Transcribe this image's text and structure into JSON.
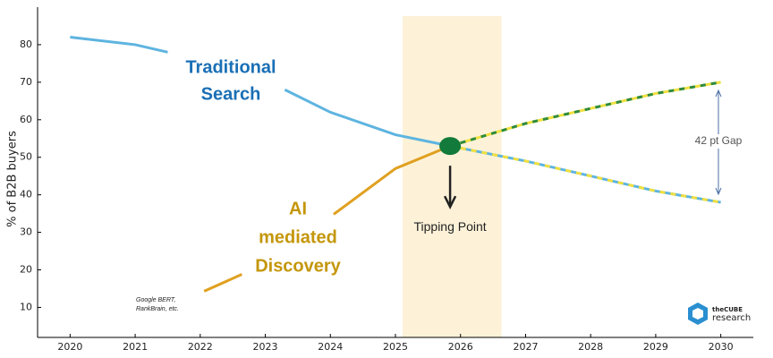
{
  "chart_data": {
    "type": "line",
    "y_label": "% of B2B buyers",
    "xlim": [
      2019.5,
      2030.5
    ],
    "ylim": [
      2,
      90
    ],
    "xticks": [
      2020,
      2021,
      2022,
      2023,
      2024,
      2025,
      2026,
      2027,
      2028,
      2029,
      2030
    ],
    "yticks": [
      10,
      20,
      30,
      40,
      50,
      60,
      70,
      80
    ],
    "highlight_band": [
      2025.11,
      2026.63
    ],
    "highlight_color": "#fdf2d8",
    "series": [
      {
        "name": [
          "Traditional",
          "Search"
        ],
        "color": "#1a6fb5",
        "line_color": "#5eb4e0",
        "x": [
          2020,
          2021,
          2021.5,
          2022.4,
          2023.3,
          2024,
          2025,
          2025.84
        ],
        "values": [
          82,
          80,
          78,
          null,
          68,
          62,
          56,
          53
        ],
        "projection": {
          "colors": [
            "#5eb4e0",
            "#f0e040"
          ],
          "x": [
            2025.84,
            2027,
            2028,
            2029,
            2030
          ],
          "values": [
            53,
            49,
            45,
            41,
            38
          ]
        }
      },
      {
        "name": [
          "AI",
          "mediated",
          "Discovery"
        ],
        "color": "#c4960a",
        "line_color": "#e0a020",
        "x": [
          2022.06,
          2022.64,
          2023.4,
          2024.05,
          2025,
          2025.84
        ],
        "values": [
          14.3,
          18.8,
          null,
          34.8,
          47,
          53
        ],
        "projection": {
          "colors": [
            "#f0e040",
            "#2e8b3e"
          ],
          "x": [
            2025.84,
            2027,
            2028,
            2029,
            2030
          ],
          "values": [
            53,
            59,
            63,
            67,
            70
          ]
        }
      }
    ],
    "tipping_point": {
      "x": 2025.84,
      "value": 53,
      "color": "#127a3a",
      "label": "Tipping Point"
    },
    "gap_label": "42 pt Gap",
    "note": [
      "Google BERT,",
      "RankBrain, etc."
    ],
    "logo": [
      "theCUBE",
      "research"
    ]
  }
}
